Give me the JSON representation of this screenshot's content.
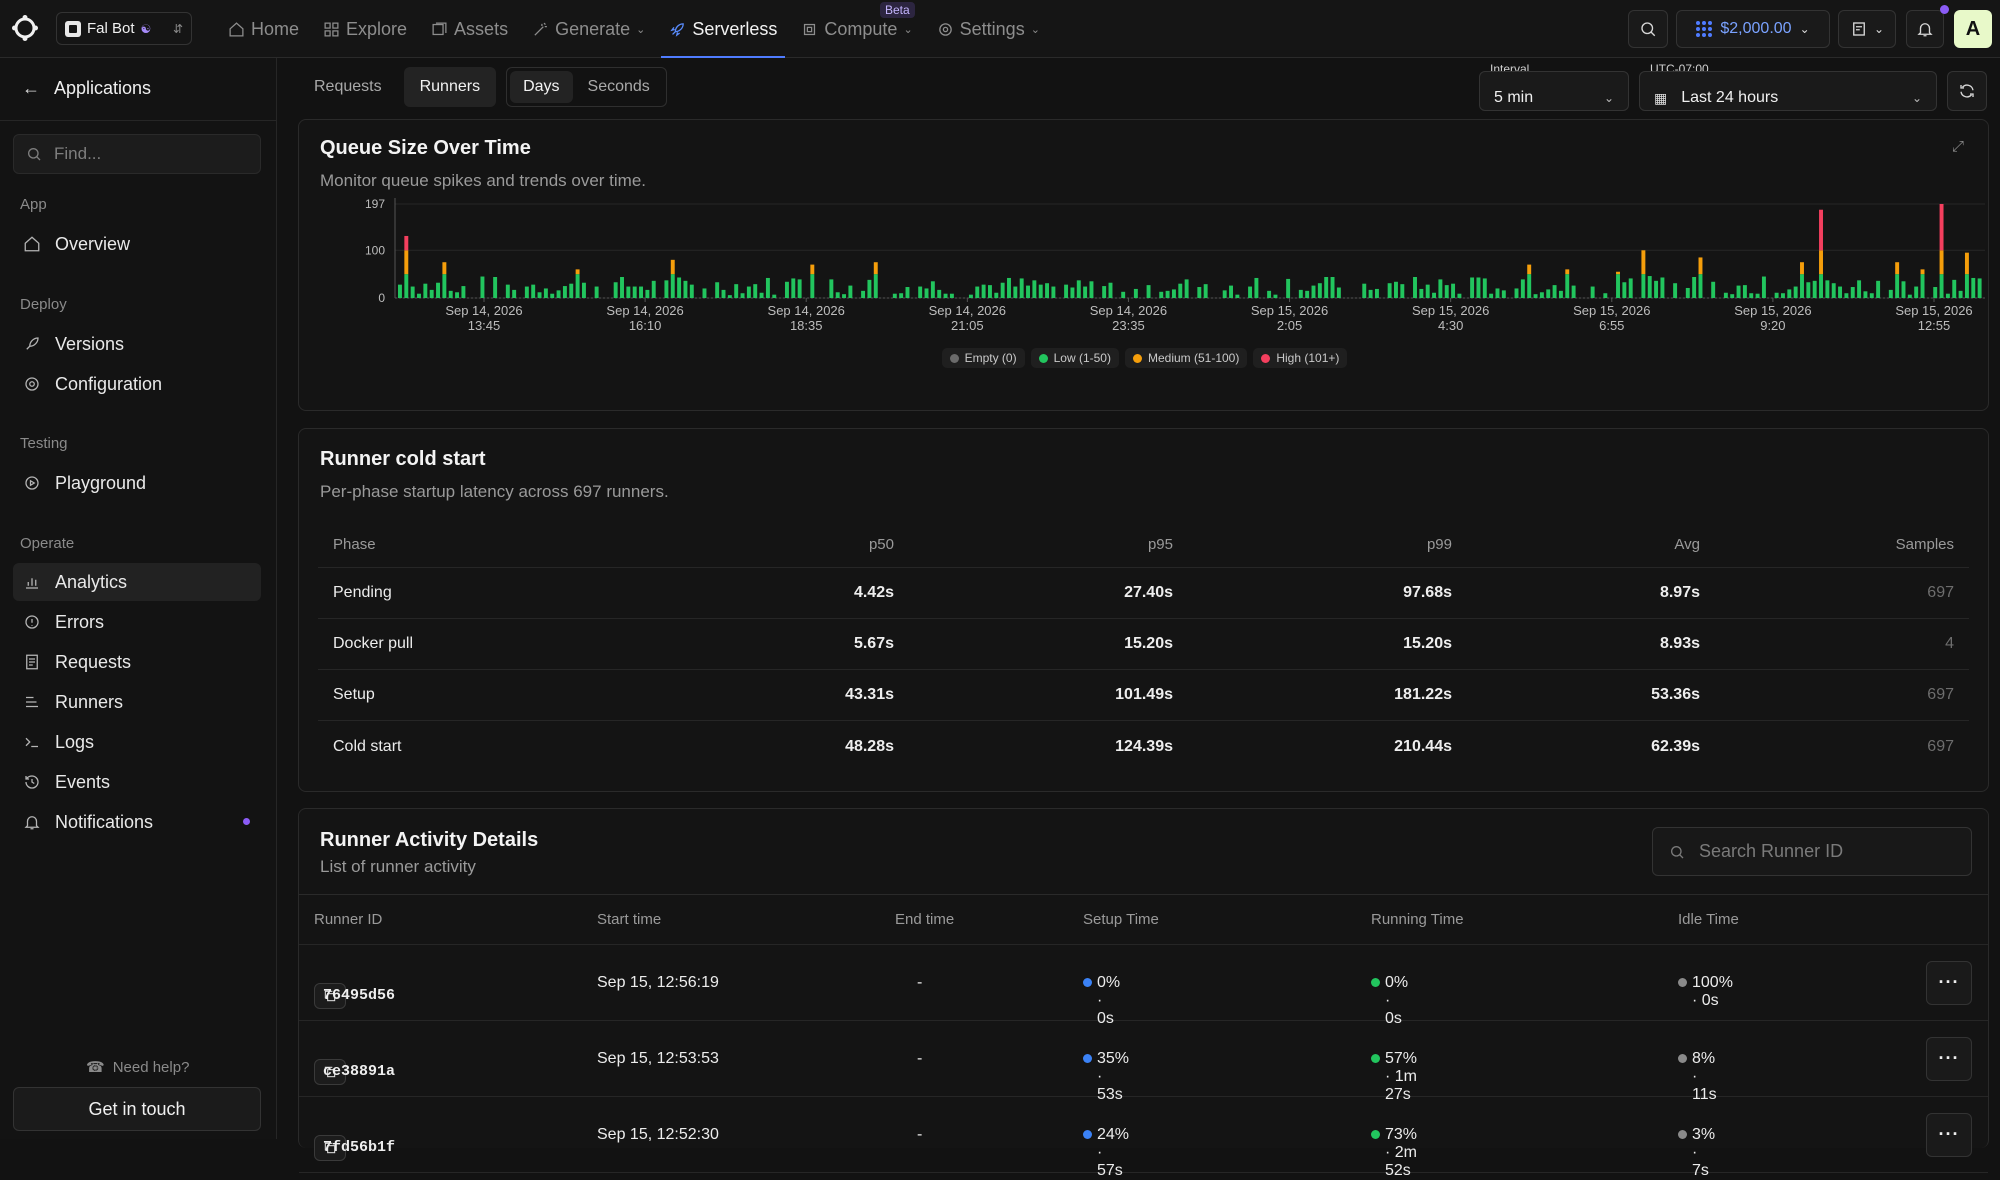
{
  "topbar": {
    "workspace": "Fal Bot",
    "nav": [
      {
        "label": "Home",
        "icon": "home-icon"
      },
      {
        "label": "Explore",
        "icon": "grid-icon"
      },
      {
        "label": "Assets",
        "icon": "assets-icon"
      },
      {
        "label": "Generate",
        "icon": "wand-icon"
      },
      {
        "label": "Serverless",
        "icon": "rocket-icon"
      },
      {
        "label": "Compute",
        "icon": "chip-icon"
      },
      {
        "label": "Settings",
        "icon": "gear-icon"
      }
    ],
    "beta_badge": "Beta",
    "credits": "$2,000.00",
    "avatar": "A"
  },
  "sidebar": {
    "back_label": "Applications",
    "find_placeholder": "Find...",
    "sections": {
      "app": "App",
      "deploy": "Deploy",
      "testing": "Testing",
      "operate": "Operate"
    },
    "items": {
      "overview": "Overview",
      "versions": "Versions",
      "configuration": "Configuration",
      "playground": "Playground",
      "analytics": "Analytics",
      "errors": "Errors",
      "requests": "Requests",
      "runners": "Runners",
      "logs": "Logs",
      "events": "Events",
      "notifications": "Notifications"
    },
    "need_help": "Need help?",
    "get_in_touch": "Get in touch"
  },
  "toolbar": {
    "tabs": [
      "Requests",
      "Runners"
    ],
    "active_tab": "Runners",
    "units": [
      "Days",
      "Seconds"
    ],
    "active_unit": "Days",
    "interval_label": "Interval",
    "interval_value": "5 min",
    "tz_label": "UTC-07:00",
    "range_value": "Last 24 hours"
  },
  "queue_card": {
    "title": "Queue Size Over Time",
    "subtitle": "Monitor queue spikes and trends over time."
  },
  "chart_data": {
    "type": "bar",
    "title": "Queue Size Over Time",
    "yticks": [
      0,
      100,
      197
    ],
    "ylim": [
      0,
      197
    ],
    "xticks": [
      [
        "Sep 14, 2026",
        "13:45"
      ],
      [
        "Sep 14, 2026",
        "16:10"
      ],
      [
        "Sep 14, 2026",
        "18:35"
      ],
      [
        "Sep 14, 2026",
        "21:05"
      ],
      [
        "Sep 14, 2026",
        "23:35"
      ],
      [
        "Sep 15, 2026",
        "2:05"
      ],
      [
        "Sep 15, 2026",
        "4:30"
      ],
      [
        "Sep 15, 2026",
        "6:55"
      ],
      [
        "Sep 15, 2026",
        "9:20"
      ],
      [
        "Sep 15, 2026",
        "12:55"
      ]
    ],
    "legend": [
      {
        "name": "Empty (0)",
        "color": "#6b6b6b"
      },
      {
        "name": "Low (1-50)",
        "color": "#22c55e"
      },
      {
        "name": "Medium (51-100)",
        "color": "#f59e0b"
      },
      {
        "name": "High (101+)",
        "color": "#f43f5e"
      }
    ],
    "legend_position": "bottom-center",
    "grid": true,
    "bar_count": 250,
    "spikes": [
      {
        "index": 1,
        "value": 130
      },
      {
        "index": 7,
        "value": 75
      },
      {
        "index": 28,
        "value": 60
      },
      {
        "index": 43,
        "value": 80
      },
      {
        "index": 65,
        "value": 70
      },
      {
        "index": 75,
        "value": 75
      },
      {
        "index": 178,
        "value": 70
      },
      {
        "index": 184,
        "value": 60
      },
      {
        "index": 192,
        "value": 55
      },
      {
        "index": 196,
        "value": 100
      },
      {
        "index": 205,
        "value": 85
      },
      {
        "index": 215,
        "value": 45
      },
      {
        "index": 221,
        "value": 75
      },
      {
        "index": 224,
        "value": 185
      },
      {
        "index": 236,
        "value": 75
      },
      {
        "index": 240,
        "value": 60
      },
      {
        "index": 243,
        "value": 197
      },
      {
        "index": 247,
        "value": 95
      }
    ]
  },
  "cold_start": {
    "title": "Runner cold start",
    "subtitle": "Per-phase startup latency across 697 runners.",
    "columns": [
      "Phase",
      "p50",
      "p95",
      "p99",
      "Avg",
      "Samples"
    ],
    "rows": [
      [
        "Pending",
        "4.42s",
        "27.40s",
        "97.68s",
        "8.97s",
        "697"
      ],
      [
        "Docker pull",
        "5.67s",
        "15.20s",
        "15.20s",
        "8.93s",
        "4"
      ],
      [
        "Setup",
        "43.31s",
        "101.49s",
        "181.22s",
        "53.36s",
        "697"
      ],
      [
        "Cold start",
        "48.28s",
        "124.39s",
        "210.44s",
        "62.39s",
        "697"
      ]
    ]
  },
  "activity": {
    "title": "Runner Activity Details",
    "subtitle": "List of runner activity",
    "search_placeholder": "Search Runner ID",
    "columns": [
      "Runner ID",
      "Start time",
      "End time",
      "Setup Time",
      "Running Time",
      "Idle Time"
    ],
    "rows": [
      {
        "id": "76495d56",
        "start": "Sep 15, 12:56:19",
        "end": "-",
        "setup": "0% · 0s",
        "running": "0% · 0s",
        "idle": "100% · 0s"
      },
      {
        "id": "ce38891a",
        "start": "Sep 15, 12:53:53",
        "end": "-",
        "setup": "35% · 53s",
        "running": "57% · 1m 27s",
        "idle": "8% · 11s"
      },
      {
        "id": "7fd56b1f",
        "start": "Sep 15, 12:52:30",
        "end": "-",
        "setup": "24% · 57s",
        "running": "73% · 2m 52s",
        "idle": "3% · 7s"
      }
    ],
    "colors": {
      "setup": "#3b82f6",
      "running": "#22c55e",
      "idle": "#8a8a8a"
    },
    "more_label": "···"
  }
}
